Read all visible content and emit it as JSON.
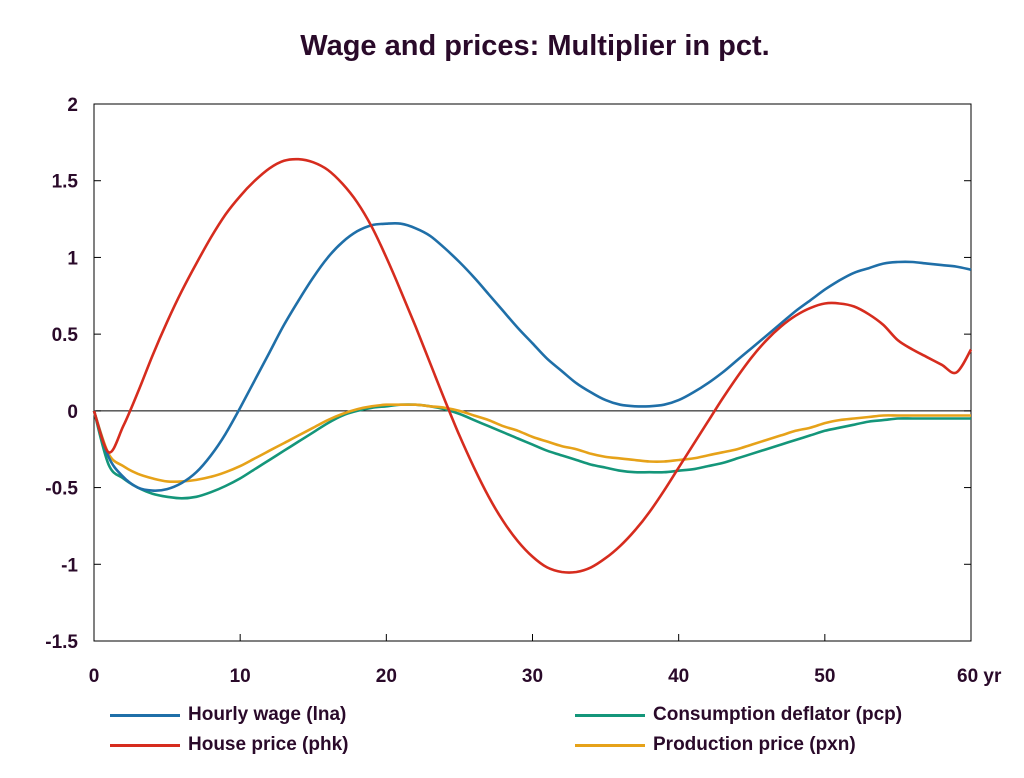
{
  "chart_data": {
    "type": "line",
    "title": "Wage and prices: Multiplier in pct.",
    "xlabel": "",
    "ylabel": "",
    "xlim": [
      0,
      60
    ],
    "ylim": [
      -1.5,
      2
    ],
    "x_ticks": [
      "0",
      "10",
      "20",
      "30",
      "40",
      "50",
      "60 yr"
    ],
    "x_tick_values": [
      0,
      10,
      20,
      30,
      40,
      50,
      60
    ],
    "y_ticks": [
      "2",
      "1.5",
      "1",
      "0.5",
      "0",
      "-0.5",
      "-1",
      "-1.5"
    ],
    "y_tick_values": [
      2,
      1.5,
      1,
      0.5,
      0,
      -0.5,
      -1,
      -1.5
    ],
    "grid": false,
    "zero_line": true,
    "legend_position": "bottom",
    "series": [
      {
        "name": "Hourly wage (lna)",
        "color": "#1f6fa8",
        "x": [
          0,
          1,
          2,
          3,
          4,
          5,
          6,
          7,
          8,
          9,
          10,
          11,
          12,
          13,
          14,
          15,
          16,
          17,
          18,
          19,
          20,
          21,
          22,
          23,
          24,
          25,
          26,
          27,
          28,
          29,
          30,
          31,
          32,
          33,
          34,
          35,
          36,
          37,
          38,
          39,
          40,
          41,
          42,
          43,
          44,
          45,
          46,
          47,
          48,
          49,
          50,
          51,
          52,
          53,
          54,
          55,
          56,
          57,
          58,
          59,
          60
        ],
        "values": [
          0,
          -0.3,
          -0.43,
          -0.5,
          -0.52,
          -0.51,
          -0.47,
          -0.4,
          -0.29,
          -0.15,
          0.02,
          0.2,
          0.38,
          0.56,
          0.72,
          0.87,
          1.0,
          1.1,
          1.17,
          1.21,
          1.22,
          1.22,
          1.19,
          1.14,
          1.06,
          0.97,
          0.87,
          0.76,
          0.65,
          0.54,
          0.44,
          0.34,
          0.26,
          0.18,
          0.12,
          0.07,
          0.04,
          0.03,
          0.03,
          0.04,
          0.07,
          0.12,
          0.18,
          0.25,
          0.33,
          0.41,
          0.49,
          0.57,
          0.65,
          0.72,
          0.79,
          0.85,
          0.9,
          0.93,
          0.96,
          0.97,
          0.97,
          0.96,
          0.95,
          0.94,
          0.92
        ]
      },
      {
        "name": "House price (phk)",
        "color": "#d62c1e",
        "x": [
          0,
          1,
          2,
          3,
          4,
          5,
          6,
          7,
          8,
          9,
          10,
          11,
          12,
          13,
          14,
          15,
          16,
          17,
          18,
          19,
          20,
          21,
          22,
          23,
          24,
          25,
          26,
          27,
          28,
          29,
          30,
          31,
          32,
          33,
          34,
          35,
          36,
          37,
          38,
          39,
          40,
          41,
          42,
          43,
          44,
          45,
          46,
          47,
          48,
          49,
          50,
          51,
          52,
          53,
          54,
          55,
          56,
          57,
          58,
          59,
          60
        ],
        "values": [
          0,
          -0.27,
          -0.1,
          0.12,
          0.36,
          0.58,
          0.78,
          0.96,
          1.13,
          1.28,
          1.4,
          1.5,
          1.58,
          1.63,
          1.64,
          1.62,
          1.57,
          1.48,
          1.36,
          1.2,
          1.0,
          0.78,
          0.55,
          0.31,
          0.07,
          -0.16,
          -0.37,
          -0.56,
          -0.72,
          -0.85,
          -0.95,
          -1.02,
          -1.05,
          -1.05,
          -1.02,
          -0.96,
          -0.88,
          -0.78,
          -0.66,
          -0.52,
          -0.37,
          -0.22,
          -0.07,
          0.08,
          0.22,
          0.35,
          0.46,
          0.55,
          0.62,
          0.67,
          0.7,
          0.7,
          0.68,
          0.63,
          0.56,
          0.46,
          0.4,
          0.35,
          0.3,
          0.25,
          0.4
        ]
      },
      {
        "name": "Consumption deflator (pcp)",
        "color": "#14967a",
        "x": [
          0,
          1,
          2,
          3,
          4,
          5,
          6,
          7,
          8,
          9,
          10,
          11,
          12,
          13,
          14,
          15,
          16,
          17,
          18,
          19,
          20,
          21,
          22,
          23,
          24,
          25,
          26,
          27,
          28,
          29,
          30,
          31,
          32,
          33,
          34,
          35,
          36,
          37,
          38,
          39,
          40,
          41,
          42,
          43,
          44,
          45,
          46,
          47,
          48,
          49,
          50,
          51,
          52,
          53,
          54,
          55,
          56,
          57,
          58,
          59,
          60
        ],
        "values": [
          0,
          -0.35,
          -0.44,
          -0.5,
          -0.54,
          -0.56,
          -0.57,
          -0.56,
          -0.53,
          -0.49,
          -0.44,
          -0.38,
          -0.32,
          -0.26,
          -0.2,
          -0.14,
          -0.08,
          -0.03,
          0.0,
          0.02,
          0.03,
          0.04,
          0.04,
          0.03,
          0.01,
          -0.02,
          -0.06,
          -0.1,
          -0.14,
          -0.18,
          -0.22,
          -0.26,
          -0.29,
          -0.32,
          -0.35,
          -0.37,
          -0.39,
          -0.4,
          -0.4,
          -0.4,
          -0.39,
          -0.38,
          -0.36,
          -0.34,
          -0.31,
          -0.28,
          -0.25,
          -0.22,
          -0.19,
          -0.16,
          -0.13,
          -0.11,
          -0.09,
          -0.07,
          -0.06,
          -0.05,
          -0.05,
          -0.05,
          -0.05,
          -0.05,
          -0.05
        ]
      },
      {
        "name": "Production price (pxn)",
        "color": "#e6a219",
        "x": [
          0,
          1,
          2,
          3,
          4,
          5,
          6,
          7,
          8,
          9,
          10,
          11,
          12,
          13,
          14,
          15,
          16,
          17,
          18,
          19,
          20,
          21,
          22,
          23,
          24,
          25,
          26,
          27,
          28,
          29,
          30,
          31,
          32,
          33,
          34,
          35,
          36,
          37,
          38,
          39,
          40,
          41,
          42,
          43,
          44,
          45,
          46,
          47,
          48,
          49,
          50,
          51,
          52,
          53,
          54,
          55,
          56,
          57,
          58,
          59,
          60
        ],
        "values": [
          0,
          -0.28,
          -0.36,
          -0.41,
          -0.44,
          -0.46,
          -0.46,
          -0.45,
          -0.43,
          -0.4,
          -0.36,
          -0.31,
          -0.26,
          -0.21,
          -0.16,
          -0.11,
          -0.06,
          -0.02,
          0.01,
          0.03,
          0.04,
          0.04,
          0.04,
          0.03,
          0.02,
          0.0,
          -0.03,
          -0.06,
          -0.1,
          -0.13,
          -0.17,
          -0.2,
          -0.23,
          -0.25,
          -0.28,
          -0.3,
          -0.31,
          -0.32,
          -0.33,
          -0.33,
          -0.32,
          -0.31,
          -0.29,
          -0.27,
          -0.25,
          -0.22,
          -0.19,
          -0.16,
          -0.13,
          -0.11,
          -0.08,
          -0.06,
          -0.05,
          -0.04,
          -0.03,
          -0.03,
          -0.03,
          -0.03,
          -0.03,
          -0.03,
          -0.03
        ]
      }
    ]
  }
}
